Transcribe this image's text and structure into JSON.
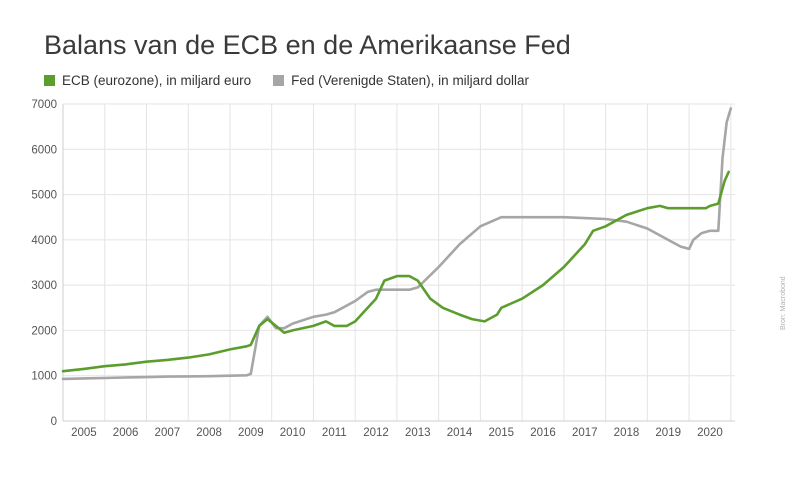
{
  "chart_data": {
    "type": "line",
    "title": "Balans van de ECB en de Amerikaanse Fed",
    "xlabel": "",
    "ylabel": "",
    "ylim": [
      0,
      7000
    ],
    "xlim": [
      2004.5,
      2020.6
    ],
    "grid": true,
    "legend_position": "top-left",
    "y_ticks": [
      0,
      1000,
      2000,
      3000,
      4000,
      5000,
      6000,
      7000
    ],
    "x_ticks": [
      2005,
      2006,
      2007,
      2008,
      2009,
      2010,
      2011,
      2012,
      2013,
      2014,
      2015,
      2016,
      2017,
      2018,
      2019,
      2020
    ],
    "series": [
      {
        "name": "ECB (eurozone), in miljard euro",
        "color": "#5c9e2e",
        "points": [
          [
            2004.5,
            1100
          ],
          [
            2005.0,
            1150
          ],
          [
            2005.5,
            1210
          ],
          [
            2006.0,
            1250
          ],
          [
            2006.5,
            1310
          ],
          [
            2007.0,
            1350
          ],
          [
            2007.5,
            1400
          ],
          [
            2008.0,
            1470
          ],
          [
            2008.5,
            1580
          ],
          [
            2008.9,
            1650
          ],
          [
            2009.0,
            1680
          ],
          [
            2009.2,
            2100
          ],
          [
            2009.4,
            2250
          ],
          [
            2009.6,
            2100
          ],
          [
            2009.8,
            1950
          ],
          [
            2010.0,
            2000
          ],
          [
            2010.5,
            2100
          ],
          [
            2010.8,
            2200
          ],
          [
            2011.0,
            2100
          ],
          [
            2011.3,
            2100
          ],
          [
            2011.5,
            2200
          ],
          [
            2011.8,
            2500
          ],
          [
            2012.0,
            2700
          ],
          [
            2012.2,
            3100
          ],
          [
            2012.5,
            3200
          ],
          [
            2012.8,
            3200
          ],
          [
            2013.0,
            3100
          ],
          [
            2013.3,
            2700
          ],
          [
            2013.6,
            2500
          ],
          [
            2014.0,
            2350
          ],
          [
            2014.3,
            2250
          ],
          [
            2014.6,
            2200
          ],
          [
            2014.9,
            2350
          ],
          [
            2015.0,
            2500
          ],
          [
            2015.5,
            2700
          ],
          [
            2016.0,
            3000
          ],
          [
            2016.5,
            3400
          ],
          [
            2017.0,
            3900
          ],
          [
            2017.2,
            4200
          ],
          [
            2017.5,
            4300
          ],
          [
            2018.0,
            4550
          ],
          [
            2018.5,
            4700
          ],
          [
            2018.8,
            4750
          ],
          [
            2019.0,
            4700
          ],
          [
            2019.5,
            4700
          ],
          [
            2019.9,
            4700
          ],
          [
            2020.0,
            4750
          ],
          [
            2020.2,
            4800
          ],
          [
            2020.35,
            5300
          ],
          [
            2020.45,
            5500
          ]
        ]
      },
      {
        "name": "Fed (Verenigde Staten), in miljard dollar",
        "color": "#a6a6a6",
        "points": [
          [
            2004.5,
            930
          ],
          [
            2005.0,
            940
          ],
          [
            2005.5,
            950
          ],
          [
            2006.0,
            960
          ],
          [
            2006.5,
            970
          ],
          [
            2007.0,
            980
          ],
          [
            2007.5,
            985
          ],
          [
            2008.0,
            990
          ],
          [
            2008.5,
            1000
          ],
          [
            2008.9,
            1010
          ],
          [
            2009.0,
            1040
          ],
          [
            2009.2,
            2100
          ],
          [
            2009.4,
            2300
          ],
          [
            2009.6,
            2050
          ],
          [
            2009.8,
            2050
          ],
          [
            2010.0,
            2150
          ],
          [
            2010.5,
            2300
          ],
          [
            2010.8,
            2350
          ],
          [
            2011.0,
            2400
          ],
          [
            2011.5,
            2650
          ],
          [
            2011.8,
            2850
          ],
          [
            2012.0,
            2900
          ],
          [
            2012.5,
            2900
          ],
          [
            2012.8,
            2900
          ],
          [
            2013.0,
            2950
          ],
          [
            2013.5,
            3400
          ],
          [
            2014.0,
            3900
          ],
          [
            2014.5,
            4300
          ],
          [
            2015.0,
            4500
          ],
          [
            2015.5,
            4500
          ],
          [
            2016.0,
            4500
          ],
          [
            2016.5,
            4500
          ],
          [
            2017.0,
            4480
          ],
          [
            2017.5,
            4460
          ],
          [
            2018.0,
            4400
          ],
          [
            2018.5,
            4250
          ],
          [
            2019.0,
            4000
          ],
          [
            2019.3,
            3850
          ],
          [
            2019.5,
            3800
          ],
          [
            2019.6,
            4000
          ],
          [
            2019.8,
            4150
          ],
          [
            2020.0,
            4200
          ],
          [
            2020.2,
            4200
          ],
          [
            2020.3,
            5800
          ],
          [
            2020.4,
            6600
          ],
          [
            2020.5,
            6900
          ]
        ]
      }
    ],
    "annotations": [
      "Bron: Macrobond"
    ]
  }
}
